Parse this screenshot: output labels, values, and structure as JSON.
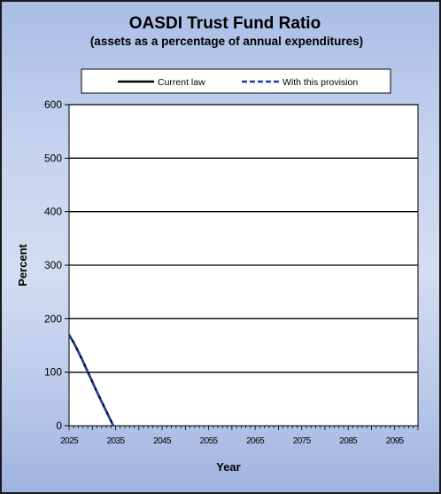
{
  "chart_data": {
    "type": "line",
    "title": "OASDI Trust Fund Ratio",
    "subtitle": "(assets as a percentage of annual expenditures)",
    "xlabel": "Year",
    "ylabel": "Percent",
    "xlim": [
      2025,
      2100
    ],
    "ylim": [
      0,
      600
    ],
    "y_ticks": [
      "0",
      "100",
      "200",
      "300",
      "400",
      "500",
      "600"
    ],
    "x_ticks": [
      "2025",
      "2035",
      "2045",
      "2055",
      "2065",
      "2075",
      "2085",
      "2095"
    ],
    "grid": "horizontal",
    "legend_position": "top",
    "series": [
      {
        "name": "Current law",
        "style": "solid",
        "color": "#000000",
        "x": [
          2025,
          2026,
          2027,
          2028,
          2029,
          2030,
          2031,
          2032,
          2033,
          2034,
          2034.5
        ],
        "y": [
          170,
          155,
          138,
          120,
          101,
          82,
          63,
          45,
          27,
          9,
          0
        ]
      },
      {
        "name": "With this provision",
        "style": "dashed",
        "color": "#1f3fa8",
        "x": [
          2025,
          2026,
          2027,
          2028,
          2029,
          2030,
          2031,
          2032,
          2033,
          2034,
          2034.5
        ],
        "y": [
          170,
          155,
          138,
          120,
          101,
          82,
          63,
          45,
          27,
          9,
          0
        ]
      }
    ]
  }
}
